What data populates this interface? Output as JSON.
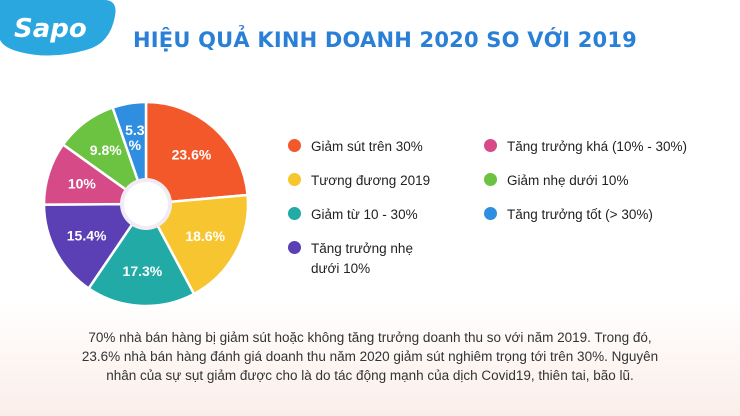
{
  "brand": {
    "logo_text": "Sapo"
  },
  "header": {
    "title": "HIỆU QUẢ KINH DOANH 2020 SO VỚI 2019"
  },
  "chart_data": {
    "type": "pie",
    "title": "HIỆU QUẢ KINH DOANH 2020 SO VỚI 2019",
    "slices": [
      {
        "label": "Giảm sút trên 30%",
        "value": 23.6,
        "display": "23.6%",
        "color": "#f2582a"
      },
      {
        "label": "Tương đương 2019",
        "value": 18.6,
        "display": "18.6%",
        "color": "#f7c530"
      },
      {
        "label": "Giảm từ 10 - 30%",
        "value": 17.3,
        "display": "17.3%",
        "color": "#22aaa6"
      },
      {
        "label": "Tăng trưởng nhẹ dưới 10%",
        "value": 15.4,
        "display": "15.4%",
        "color": "#5a3fb5"
      },
      {
        "label": "Tăng trưởng khá (10% - 30%)",
        "value": 10,
        "display": "10%",
        "color": "#d64a88"
      },
      {
        "label": "Giảm nhẹ dưới 10%",
        "value": 9.8,
        "display": "9.8%",
        "color": "#6cc241"
      },
      {
        "label": "Tăng trưởng tốt (> 30%)",
        "value": 5.3,
        "display": "5.3\n%",
        "color": "#2f8ee0"
      }
    ],
    "legend_placement": "right"
  },
  "legend": {
    "items": [
      {
        "label": "Giảm sút trên 30%",
        "color": "#f2582a"
      },
      {
        "label": "Tương đương 2019",
        "color": "#f7c530"
      },
      {
        "label": "Giảm từ 10 - 30%",
        "color": "#22aaa6"
      },
      {
        "label": "Tăng trưởng nhẹ dưới 10%",
        "line1": "Tăng trưởng nhẹ",
        "line2": "dưới 10%",
        "color": "#5a3fb5"
      },
      {
        "label": "Tăng trưởng khá (10% - 30%)",
        "color": "#d64a88"
      },
      {
        "label": "Giảm nhẹ dưới 10%",
        "color": "#6cc241"
      },
      {
        "label": "Tăng trưởng tốt (> 30%)",
        "color": "#2f8ee0"
      }
    ]
  },
  "footer": {
    "line1": "70% nhà bán hàng bị giảm sút hoặc không tăng trưởng doanh thu so với năm 2019. Trong đó,",
    "line2": "23.6% nhà bán hàng đánh giá doanh thu năm 2020 giảm sút nghiêm trọng tới trên 30%. Nguyên",
    "line3": "nhân của sự sụt giảm được cho là do tác động mạnh của dịch Covid19, thiên tai, bão lũ."
  }
}
